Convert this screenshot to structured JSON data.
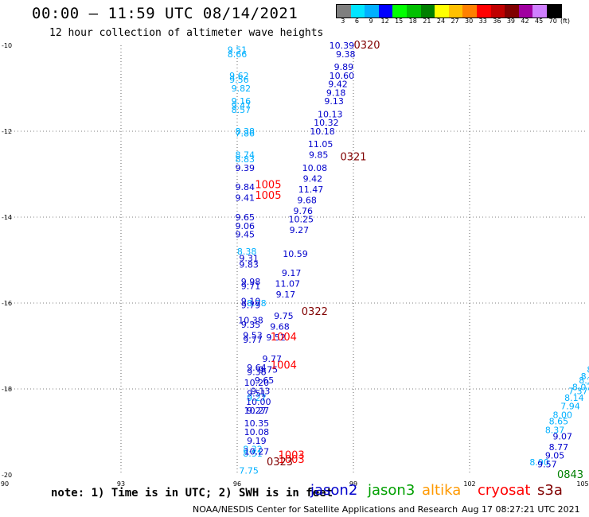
{
  "header": {
    "title": "00:00 – 11:59 UTC 08/14/2021",
    "subtitle": "12 hour collection of altimeter wave heights"
  },
  "color_scale": {
    "labels": [
      "3",
      "6",
      "9",
      "12",
      "15",
      "18",
      "21",
      "24",
      "27",
      "30",
      "33",
      "36",
      "39",
      "42",
      "45",
      "70"
    ],
    "unit": "(ft)",
    "colors": [
      "#7f7f7f",
      "#00e5ff",
      "#00b0ff",
      "#0000ff",
      "#00ff00",
      "#00c000",
      "#008000",
      "#ffff00",
      "#ffc000",
      "#ff8000",
      "#ff0000",
      "#c00000",
      "#800000",
      "#a000a0",
      "#d080ff",
      "#000000"
    ]
  },
  "footer": {
    "note": "note: 1) Time is in UTC; 2) SWH is in feet",
    "satellites": [
      {
        "name": "jason2",
        "color": "#0000cc"
      },
      {
        "name": "jason3",
        "color": "#00a000"
      },
      {
        "name": "altika",
        "color": "#ff9900"
      },
      {
        "name": "cryosat",
        "color": "#ff0000"
      },
      {
        "name": "s3a",
        "color": "#800000"
      }
    ],
    "credit": "NOAA/NESDIS Center for Satellite Applications and Research",
    "timestamp": "Aug 17 08:27:21 UTC 2021"
  },
  "chart_data": {
    "type": "scatter",
    "xlim": [
      90,
      105
    ],
    "ylim": [
      -20,
      -10
    ],
    "xticks": [
      90,
      93,
      96,
      99,
      102,
      105
    ],
    "yticks": [
      -10,
      -12,
      -14,
      -16,
      -18,
      -20
    ],
    "grid": true,
    "tracks": [
      {
        "color": "#00b0ff",
        "points": [
          {
            "x": 96.0,
            "y": -10.1,
            "label": "9.51"
          },
          {
            "x": 96.0,
            "y": -10.2,
            "label": "8.66"
          },
          {
            "x": 96.05,
            "y": -10.7,
            "label": "9.62"
          },
          {
            "x": 96.05,
            "y": -10.8,
            "label": "9.56"
          },
          {
            "x": 96.1,
            "y": -11.0,
            "label": "9.82"
          },
          {
            "x": 96.1,
            "y": -11.3,
            "label": "9.16"
          },
          {
            "x": 96.1,
            "y": -11.4,
            "label": "9.47"
          },
          {
            "x": 96.1,
            "y": -11.5,
            "label": "8.57"
          },
          {
            "x": 96.2,
            "y": -12.0,
            "label": "8.38"
          },
          {
            "x": 96.2,
            "y": -12.05,
            "label": "7.86"
          },
          {
            "x": 96.2,
            "y": -12.55,
            "label": "8.74"
          },
          {
            "x": 96.2,
            "y": -12.65,
            "label": "8.83"
          },
          {
            "x": 96.25,
            "y": -14.8,
            "label": "8.38"
          },
          {
            "x": 96.5,
            "y": -16.0,
            "label": "8.78"
          },
          {
            "x": 96.5,
            "y": -18.2,
            "label": "9.27"
          },
          {
            "x": 96.4,
            "y": -19.4,
            "label": "8.32"
          },
          {
            "x": 96.4,
            "y": -19.5,
            "label": "8.51"
          },
          {
            "x": 96.3,
            "y": -19.9,
            "label": "7.75"
          },
          {
            "x": 105.1,
            "y": -17.55,
            "label": "8"
          },
          {
            "x": 105.05,
            "y": -17.7,
            "label": "8.2"
          },
          {
            "x": 105.0,
            "y": -17.8,
            "label": "8.3"
          },
          {
            "x": 104.9,
            "y": -17.95,
            "label": "8.07"
          },
          {
            "x": 104.8,
            "y": -18.05,
            "label": "7.37"
          },
          {
            "x": 104.7,
            "y": -18.2,
            "label": "8.14"
          },
          {
            "x": 104.6,
            "y": -18.4,
            "label": "7.94"
          },
          {
            "x": 104.4,
            "y": -18.6,
            "label": "8.00"
          },
          {
            "x": 104.3,
            "y": -18.75,
            "label": "8.65"
          },
          {
            "x": 104.2,
            "y": -18.95,
            "label": "8.37"
          },
          {
            "x": 103.8,
            "y": -19.7,
            "label": "8.90"
          }
        ]
      },
      {
        "color": "#0000cc",
        "points": [
          {
            "x": 98.7,
            "y": -10.0,
            "label": "10.39"
          },
          {
            "x": 98.8,
            "y": -10.2,
            "label": "9.38"
          },
          {
            "x": 98.75,
            "y": -10.5,
            "label": "9.89"
          },
          {
            "x": 98.7,
            "y": -10.7,
            "label": "10.60"
          },
          {
            "x": 98.6,
            "y": -10.9,
            "label": "9.42"
          },
          {
            "x": 98.55,
            "y": -11.1,
            "label": "9.18"
          },
          {
            "x": 98.5,
            "y": -11.3,
            "label": "9.13"
          },
          {
            "x": 98.4,
            "y": -11.6,
            "label": "10.13"
          },
          {
            "x": 98.3,
            "y": -11.8,
            "label": "10.32"
          },
          {
            "x": 98.2,
            "y": -12.0,
            "label": "10.18"
          },
          {
            "x": 98.15,
            "y": -12.3,
            "label": "11.05"
          },
          {
            "x": 98.1,
            "y": -12.55,
            "label": "9.85"
          },
          {
            "x": 98.0,
            "y": -12.85,
            "label": "10.08"
          },
          {
            "x": 97.95,
            "y": -13.1,
            "label": "9.42"
          },
          {
            "x": 97.9,
            "y": -13.35,
            "label": "11.47"
          },
          {
            "x": 97.8,
            "y": -13.6,
            "label": "9.68"
          },
          {
            "x": 97.7,
            "y": -13.85,
            "label": "9.76"
          },
          {
            "x": 97.65,
            "y": -14.05,
            "label": "10.25"
          },
          {
            "x": 97.6,
            "y": -14.3,
            "label": "9.27"
          },
          {
            "x": 97.5,
            "y": -14.85,
            "label": "10.59"
          },
          {
            "x": 97.4,
            "y": -15.3,
            "label": "9.17"
          },
          {
            "x": 97.3,
            "y": -15.55,
            "label": "11.07"
          },
          {
            "x": 97.25,
            "y": -15.8,
            "label": "9.17"
          },
          {
            "x": 97.2,
            "y": -16.3,
            "label": "9.75"
          },
          {
            "x": 97.1,
            "y": -16.55,
            "label": "9.68"
          },
          {
            "x": 97.0,
            "y": -16.8,
            "label": "9.52"
          },
          {
            "x": 96.9,
            "y": -17.3,
            "label": "9.77"
          },
          {
            "x": 96.8,
            "y": -17.55,
            "label": "9.75"
          },
          {
            "x": 96.7,
            "y": -17.8,
            "label": "9.65"
          },
          {
            "x": 96.6,
            "y": -18.05,
            "label": "9.13"
          },
          {
            "x": 96.55,
            "y": -18.3,
            "label": "10.00"
          },
          {
            "x": 96.5,
            "y": -18.5,
            "label": "10.27"
          },
          {
            "x": 96.2,
            "y": -12.85,
            "label": "9.39"
          },
          {
            "x": 96.2,
            "y": -13.3,
            "label": "9.84"
          },
          {
            "x": 96.2,
            "y": -13.55,
            "label": "9.41"
          },
          {
            "x": 96.2,
            "y": -14.0,
            "label": "9.65"
          },
          {
            "x": 96.2,
            "y": -14.2,
            "label": "9.06"
          },
          {
            "x": 96.2,
            "y": -14.4,
            "label": "9.45"
          },
          {
            "x": 96.3,
            "y": -14.95,
            "label": "9.31"
          },
          {
            "x": 96.3,
            "y": -15.1,
            "label": "9.83"
          },
          {
            "x": 96.35,
            "y": -15.5,
            "label": "9.98"
          },
          {
            "x": 96.35,
            "y": -15.6,
            "label": "9.71"
          },
          {
            "x": 96.35,
            "y": -15.95,
            "label": "9.10"
          },
          {
            "x": 96.35,
            "y": -16.05,
            "label": "9.79"
          },
          {
            "x": 96.35,
            "y": -16.4,
            "label": "10.38"
          },
          {
            "x": 96.35,
            "y": -16.5,
            "label": "9.35"
          },
          {
            "x": 96.4,
            "y": -16.75,
            "label": "9.53"
          },
          {
            "x": 96.4,
            "y": -16.85,
            "label": "9.77"
          },
          {
            "x": 96.5,
            "y": -17.5,
            "label": "9.64"
          },
          {
            "x": 96.5,
            "y": -17.6,
            "label": "9.38"
          },
          {
            "x": 96.5,
            "y": -17.85,
            "label": "10.20"
          },
          {
            "x": 96.5,
            "y": -18.1,
            "label": "9.51"
          },
          {
            "x": 96.5,
            "y": -18.5,
            "label": "9.27"
          },
          {
            "x": 96.5,
            "y": -18.8,
            "label": "10.35"
          },
          {
            "x": 96.5,
            "y": -19.0,
            "label": "10.08"
          },
          {
            "x": 96.5,
            "y": -19.2,
            "label": "9.19"
          },
          {
            "x": 96.5,
            "y": -19.45,
            "label": "10.27"
          },
          {
            "x": 104.4,
            "y": -19.1,
            "label": "9.07"
          },
          {
            "x": 104.3,
            "y": -19.35,
            "label": "8.77"
          },
          {
            "x": 104.2,
            "y": -19.55,
            "label": "9.05"
          },
          {
            "x": 104.0,
            "y": -19.75,
            "label": "9.57"
          }
        ]
      },
      {
        "color": "#ff0000",
        "points": [
          {
            "x": 96.8,
            "y": -13.25,
            "label": "1005"
          },
          {
            "x": 96.8,
            "y": -13.5,
            "label": "1005"
          },
          {
            "x": 97.2,
            "y": -16.8,
            "label": "1004"
          },
          {
            "x": 97.2,
            "y": -17.45,
            "label": "1004"
          },
          {
            "x": 97.4,
            "y": -19.55,
            "label": "1003"
          },
          {
            "x": 97.4,
            "y": -19.65,
            "label": "1003"
          }
        ]
      },
      {
        "color": "#800000",
        "points": [
          {
            "x": 99.35,
            "y": -10.0,
            "label": "0320"
          },
          {
            "x": 99.0,
            "y": -12.6,
            "label": "0321"
          },
          {
            "x": 98.0,
            "y": -16.2,
            "label": "0322"
          },
          {
            "x": 97.1,
            "y": -19.7,
            "label": "0323"
          }
        ]
      },
      {
        "color": "#008000",
        "points": [
          {
            "x": 104.6,
            "y": -20.0,
            "label": "0843"
          }
        ]
      }
    ]
  }
}
